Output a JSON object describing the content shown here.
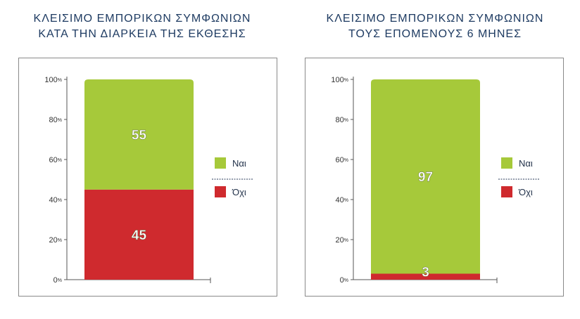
{
  "chart_data": [
    {
      "type": "bar",
      "stacked": true,
      "title_lines": [
        "ΚΛΕΙΣΙΜΟ ΕΜΠΟΡΙΚΩΝ ΣΥΜΦΩΝΙΩΝ",
        "ΚΑΤΑ ΤΗΝ ΔΙΑΡΚΕΙΑ ΤΗΣ ΕΚΘΕΣΗΣ"
      ],
      "ylim": [
        0,
        100
      ],
      "yticks": [
        "0%",
        "20%",
        "40%",
        "60%",
        "80%",
        "100%"
      ],
      "series": [
        {
          "name": "Ναι",
          "value": 55,
          "label": "55",
          "color": "#a6c93a"
        },
        {
          "name": "Όχι",
          "value": 45,
          "label": "45",
          "color": "#cf2a2e"
        }
      ],
      "legend_position": "right"
    },
    {
      "type": "bar",
      "stacked": true,
      "title_lines": [
        "ΚΛΕΙΣΙΜΟ ΕΜΠΟΡΙΚΩΝ ΣΥΜΦΩΝΙΩΝ",
        "ΤΟΥΣ ΕΠΟΜΕΝΟΥΣ 6 ΜΗΝΕΣ"
      ],
      "ylim": [
        0,
        100
      ],
      "yticks": [
        "0%",
        "20%",
        "40%",
        "60%",
        "80%",
        "100%"
      ],
      "series": [
        {
          "name": "Ναι",
          "value": 97,
          "label": "97",
          "color": "#a6c93a"
        },
        {
          "name": "Όχι",
          "value": 3,
          "label": "3",
          "color": "#cf2a2e"
        }
      ],
      "legend_position": "right"
    }
  ]
}
